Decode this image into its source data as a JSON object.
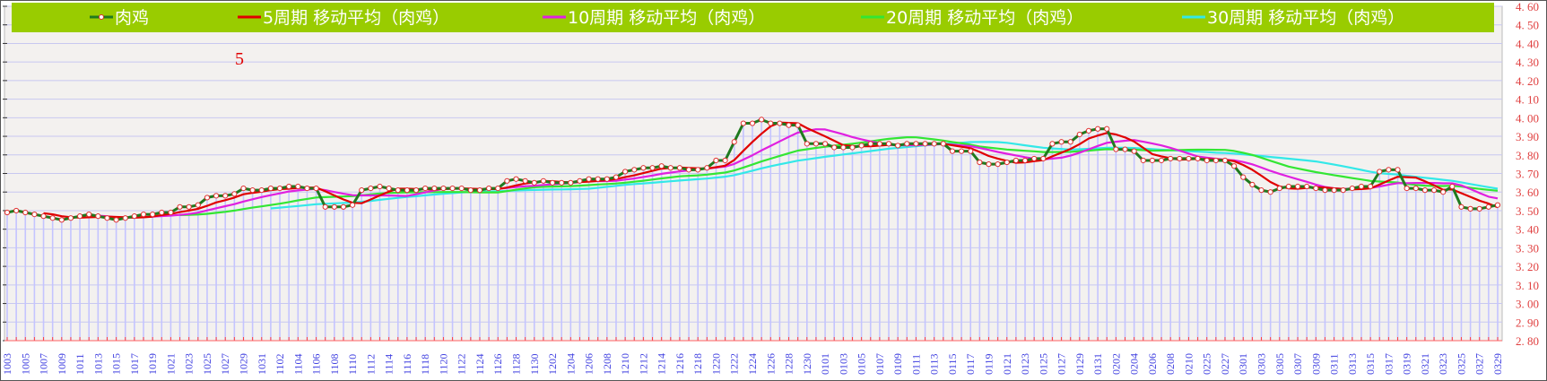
{
  "chart_data": {
    "type": "line",
    "annotation": "5",
    "legend_position": "top",
    "ylim": [
      2.8,
      4.6
    ],
    "y_tick_step": 0.1,
    "y_axis_side": "right",
    "grid": true,
    "series": [
      {
        "name": "肉鸡",
        "color": "#1f7a1f",
        "marker": true,
        "values": [
          3.49,
          3.5,
          3.49,
          3.48,
          3.47,
          3.46,
          3.45,
          3.46,
          3.47,
          3.48,
          3.47,
          3.46,
          3.45,
          3.46,
          3.47,
          3.48,
          3.48,
          3.49,
          3.49,
          3.52,
          3.52,
          3.53,
          3.57,
          3.58,
          3.58,
          3.59,
          3.62,
          3.61,
          3.61,
          3.62,
          3.62,
          3.63,
          3.63,
          3.62,
          3.62,
          3.52,
          3.52,
          3.52,
          3.53,
          3.61,
          3.62,
          3.63,
          3.62,
          3.61,
          3.61,
          3.61,
          3.62,
          3.62,
          3.62,
          3.62,
          3.62,
          3.61,
          3.61,
          3.62,
          3.62,
          3.66,
          3.67,
          3.66,
          3.65,
          3.66,
          3.65,
          3.65,
          3.65,
          3.66,
          3.67,
          3.67,
          3.67,
          3.68,
          3.71,
          3.72,
          3.73,
          3.73,
          3.74,
          3.73,
          3.73,
          3.72,
          3.72,
          3.73,
          3.77,
          3.77,
          3.87,
          3.97,
          3.97,
          3.99,
          3.97,
          3.97,
          3.96,
          3.96,
          3.86,
          3.86,
          3.86,
          3.84,
          3.84,
          3.84,
          3.85,
          3.86,
          3.86,
          3.86,
          3.85,
          3.86,
          3.86,
          3.86,
          3.86,
          3.86,
          3.82,
          3.82,
          3.82,
          3.76,
          3.75,
          3.75,
          3.76,
          3.77,
          3.77,
          3.78,
          3.78,
          3.86,
          3.87,
          3.87,
          3.91,
          3.93,
          3.94,
          3.94,
          3.83,
          3.83,
          3.82,
          3.77,
          3.77,
          3.77,
          3.78,
          3.78,
          3.78,
          3.78,
          3.77,
          3.77,
          3.77,
          3.74,
          3.68,
          3.64,
          3.61,
          3.6,
          3.62,
          3.63,
          3.63,
          3.63,
          3.62,
          3.61,
          3.61,
          3.61,
          3.62,
          3.63,
          3.63,
          3.71,
          3.72,
          3.72,
          3.62,
          3.62,
          3.61,
          3.61,
          3.6,
          3.63,
          3.52,
          3.51,
          3.51,
          3.52,
          3.53
        ]
      },
      {
        "name": "5周期 移动平均（肉鸡）",
        "color": "#e00000",
        "moving_average_of": 0,
        "period": 5
      },
      {
        "name": "10周期 移动平均（肉鸡）",
        "color": "#e020e0",
        "moving_average_of": 0,
        "period": 10
      },
      {
        "name": "20周期 移动平均（肉鸡）",
        "color": "#33e633",
        "moving_average_of": 0,
        "period": 20
      },
      {
        "name": "30周期 移动平均（肉鸡）",
        "color": "#33e8e8",
        "moving_average_of": 0,
        "period": 30
      }
    ],
    "x_tick_every": 2,
    "x_tick_labels": [
      "1003",
      "1005",
      "1007",
      "1009",
      "1011",
      "1013",
      "1015",
      "1017",
      "1019",
      "1021",
      "1023",
      "1025",
      "1027",
      "1029",
      "1031",
      "1102",
      "1104",
      "1106",
      "1108",
      "1110",
      "1112",
      "1114",
      "1116",
      "1118",
      "1120",
      "1122",
      "1124",
      "1126",
      "1128",
      "1130",
      "1202",
      "1204",
      "1206",
      "1208",
      "1210",
      "1212",
      "1214",
      "1216",
      "1218",
      "1220",
      "1222",
      "1224",
      "1226",
      "1228",
      "1230",
      "0101",
      "0103",
      "0105",
      "0107",
      "0109",
      "0111",
      "0113",
      "0115",
      "0117",
      "0119",
      "0121",
      "0123",
      "0125",
      "0127",
      "0129",
      "0131",
      "0202",
      "0204",
      "0206",
      "0208",
      "0210",
      "0225",
      "0227",
      "0301",
      "0303",
      "0305",
      "0307",
      "0309",
      "0311",
      "0313",
      "0315",
      "0317",
      "0319",
      "0321",
      "0323",
      "0325",
      "0327",
      "0329"
    ],
    "y_tick_labels": [
      "2.80",
      "2.90",
      "3.00",
      "3.10",
      "3.20",
      "3.30",
      "3.40",
      "3.50",
      "3.60",
      "3.70",
      "3.80",
      "3.90",
      "4.00",
      "4.10",
      "4.20",
      "4.30",
      "4.40",
      "4.50",
      "4.60"
    ]
  },
  "colors": {
    "legend_bg": "#99cc00",
    "plot_bg": "#f3f1ef",
    "grid": "#c8c8f0",
    "drop_line": "#c4c4ff",
    "axis_text": "#e04040",
    "x_text": "#4040e0"
  }
}
